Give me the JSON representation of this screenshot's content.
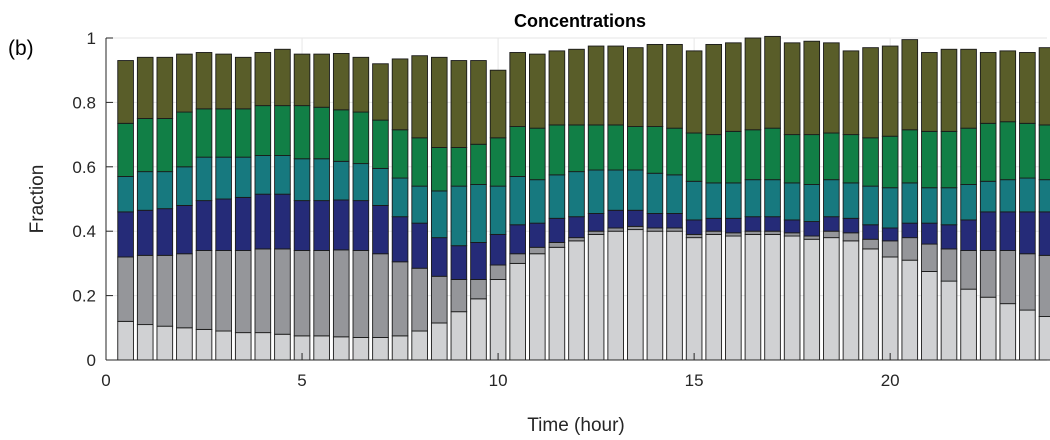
{
  "chart_data": {
    "type": "bar",
    "stacked": true,
    "title": "Concentrations",
    "panel_label": "(b)",
    "xlabel": "Time (hour)",
    "ylabel": "Fraction",
    "xlim": [
      0,
      24
    ],
    "ylim": [
      0,
      1
    ],
    "x_ticks": [
      0,
      5,
      10,
      15,
      20
    ],
    "y_ticks": [
      0,
      0.2,
      0.4,
      0.6,
      0.8,
      1
    ],
    "y_tick_labels": [
      "0",
      "0.2",
      "0.4",
      "0.6",
      "0.8",
      "1"
    ],
    "grid": true,
    "bar_width_hours": 0.4,
    "x": [
      0.5,
      1,
      1.5,
      2,
      2.5,
      3,
      3.5,
      4,
      4.5,
      5,
      5.5,
      6,
      6.5,
      7,
      7.5,
      8,
      8.5,
      9,
      9.5,
      10,
      10.5,
      11,
      11.5,
      12,
      12.5,
      13,
      13.5,
      14,
      14.5,
      15,
      15.5,
      16,
      16.5,
      17,
      17.5,
      18,
      18.5,
      19,
      19.5,
      20,
      20.5,
      21,
      21.5,
      22,
      22.5,
      23,
      23.5,
      24
    ],
    "series": [
      {
        "color": "#d0d1d3",
        "values": [
          0.12,
          0.11,
          0.105,
          0.1,
          0.095,
          0.09,
          0.085,
          0.085,
          0.08,
          0.075,
          0.075,
          0.072,
          0.07,
          0.07,
          0.075,
          0.09,
          0.115,
          0.15,
          0.19,
          0.25,
          0.3,
          0.33,
          0.35,
          0.37,
          0.39,
          0.4,
          0.405,
          0.4,
          0.4,
          0.38,
          0.39,
          0.385,
          0.39,
          0.39,
          0.385,
          0.375,
          0.38,
          0.37,
          0.345,
          0.32,
          0.31,
          0.275,
          0.245,
          0.22,
          0.195,
          0.175,
          0.155,
          0.135
        ]
      },
      {
        "color": "#95969a",
        "values": [
          0.2,
          0.215,
          0.22,
          0.23,
          0.245,
          0.25,
          0.255,
          0.26,
          0.265,
          0.265,
          0.265,
          0.27,
          0.27,
          0.26,
          0.23,
          0.195,
          0.145,
          0.1,
          0.06,
          0.045,
          0.03,
          0.02,
          0.015,
          0.01,
          0.01,
          0.01,
          0.01,
          0.01,
          0.01,
          0.01,
          0.01,
          0.01,
          0.01,
          0.01,
          0.01,
          0.01,
          0.02,
          0.025,
          0.03,
          0.05,
          0.07,
          0.085,
          0.1,
          0.12,
          0.145,
          0.165,
          0.175,
          0.19
        ]
      },
      {
        "color": "#252b78",
        "values": [
          0.14,
          0.14,
          0.145,
          0.15,
          0.155,
          0.16,
          0.165,
          0.17,
          0.17,
          0.155,
          0.155,
          0.155,
          0.155,
          0.15,
          0.14,
          0.14,
          0.12,
          0.105,
          0.115,
          0.095,
          0.09,
          0.075,
          0.075,
          0.065,
          0.055,
          0.055,
          0.05,
          0.045,
          0.045,
          0.045,
          0.04,
          0.045,
          0.045,
          0.045,
          0.04,
          0.045,
          0.045,
          0.045,
          0.045,
          0.04,
          0.045,
          0.065,
          0.075,
          0.095,
          0.12,
          0.12,
          0.13,
          0.135
        ]
      },
      {
        "color": "#17797f",
        "values": [
          0.11,
          0.12,
          0.115,
          0.12,
          0.135,
          0.13,
          0.125,
          0.12,
          0.12,
          0.13,
          0.13,
          0.12,
          0.115,
          0.115,
          0.12,
          0.115,
          0.145,
          0.185,
          0.18,
          0.15,
          0.15,
          0.135,
          0.135,
          0.14,
          0.135,
          0.125,
          0.125,
          0.125,
          0.12,
          0.12,
          0.11,
          0.11,
          0.115,
          0.115,
          0.115,
          0.115,
          0.115,
          0.11,
          0.12,
          0.125,
          0.125,
          0.11,
          0.115,
          0.11,
          0.095,
          0.1,
          0.105,
          0.1
        ]
      },
      {
        "color": "#117f46",
        "values": [
          0.165,
          0.165,
          0.165,
          0.17,
          0.15,
          0.15,
          0.15,
          0.155,
          0.155,
          0.165,
          0.16,
          0.16,
          0.16,
          0.15,
          0.15,
          0.15,
          0.135,
          0.12,
          0.125,
          0.15,
          0.155,
          0.16,
          0.155,
          0.145,
          0.14,
          0.14,
          0.135,
          0.145,
          0.145,
          0.15,
          0.15,
          0.16,
          0.155,
          0.16,
          0.15,
          0.155,
          0.145,
          0.15,
          0.15,
          0.16,
          0.165,
          0.175,
          0.175,
          0.175,
          0.18,
          0.18,
          0.17,
          0.17
        ]
      },
      {
        "color": "#595d29",
        "values": [
          0.195,
          0.19,
          0.19,
          0.18,
          0.175,
          0.17,
          0.16,
          0.165,
          0.175,
          0.16,
          0.165,
          0.175,
          0.17,
          0.175,
          0.22,
          0.255,
          0.28,
          0.27,
          0.26,
          0.21,
          0.23,
          0.23,
          0.23,
          0.235,
          0.245,
          0.245,
          0.245,
          0.255,
          0.26,
          0.255,
          0.28,
          0.275,
          0.285,
          0.285,
          0.285,
          0.29,
          0.28,
          0.26,
          0.28,
          0.28,
          0.28,
          0.245,
          0.255,
          0.245,
          0.22,
          0.22,
          0.22,
          0.24
        ]
      }
    ]
  }
}
